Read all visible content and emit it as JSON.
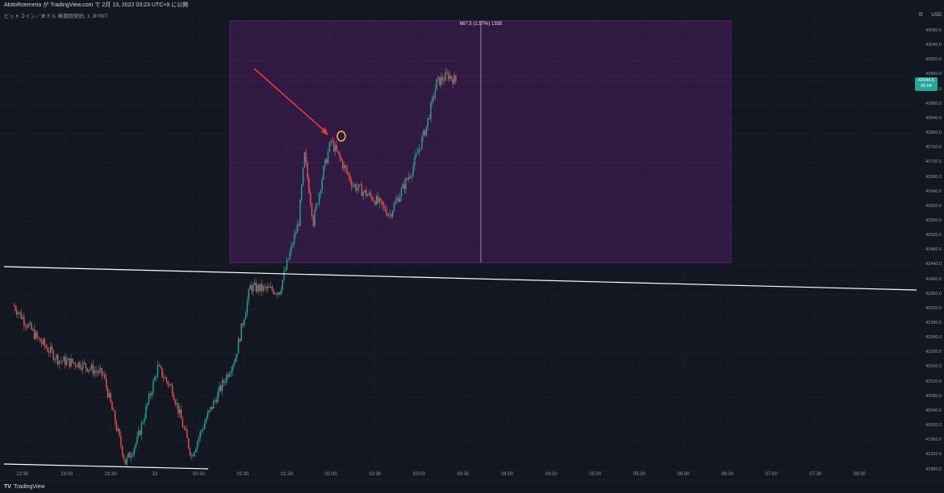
{
  "header": {
    "top_text": "AlotoRoemeria が TradingView.com で 2月 13, 2022 03:23 UTC+9 に公開",
    "symbol_text": "ビットコイン／米ドル 無期限契約, 1, BYBIT"
  },
  "measure": {
    "label": "667.5 (1.57%) 1335"
  },
  "price_axis": {
    "currency": "USD",
    "ticks": [
      "43080.0",
      "43040.0",
      "43000.0",
      "42960.0",
      "42920.0",
      "42880.0",
      "42840.0",
      "42800.0",
      "42760.0",
      "42720.0",
      "42680.0",
      "42640.0",
      "42600.0",
      "42560.0",
      "42520.0",
      "42480.0",
      "42440.0",
      "42400.0",
      "42360.0",
      "42320.0",
      "42280.0",
      "42240.0",
      "42200.0",
      "42160.0",
      "42120.0",
      "42080.0",
      "42040.0",
      "42000.0",
      "41960.0",
      "41920.0",
      "41880.0"
    ],
    "last_price": "42944.5",
    "countdown": "00:04"
  },
  "time_axis": {
    "ticks": [
      "22:30",
      "23:00",
      "23:30",
      "13",
      "00:30",
      "01:00",
      "01:30",
      "02:00",
      "02:30",
      "03:00",
      "03:30",
      "04:00",
      "04:30",
      "05:00",
      "05:30",
      "06:00",
      "06:30",
      "07:00",
      "07:30",
      "08:00"
    ]
  },
  "footer": {
    "brand": "TradingView",
    "logo_mark": "TV"
  },
  "colors": {
    "up": "#26a69a",
    "down": "#ef5350",
    "box": "#9c27b0",
    "arrow": "#e53935",
    "circle": "#ffb74d",
    "trendline": "#ffffff"
  },
  "chart_data": {
    "type": "candlestick",
    "title": "",
    "y_range": [
      41870,
      43100
    ],
    "close_path": [
      [
        "22:24",
        42330
      ],
      [
        "22:40",
        42240
      ],
      [
        "22:55",
        42180
      ],
      [
        "23:10",
        42170
      ],
      [
        "23:25",
        42140
      ],
      [
        "23:40",
        41900
      ],
      [
        "23:48",
        41960
      ],
      [
        "00:02",
        42160
      ],
      [
        "00:12",
        42100
      ],
      [
        "00:25",
        41920
      ],
      [
        "00:35",
        42020
      ],
      [
        "00:55",
        42190
      ],
      [
        "01:05",
        42380
      ],
      [
        "01:25",
        42370
      ],
      [
        "01:38",
        42560
      ],
      [
        "01:42",
        42740
      ],
      [
        "01:48",
        42560
      ],
      [
        "01:55",
        42700
      ],
      [
        "02:00",
        42780
      ],
      [
        "02:15",
        42660
      ],
      [
        "02:30",
        42620
      ],
      [
        "02:40",
        42580
      ],
      [
        "02:55",
        42700
      ],
      [
        "03:05",
        42820
      ],
      [
        "03:12",
        42940
      ],
      [
        "03:20",
        42960
      ],
      [
        "03:25",
        42944.5
      ]
    ]
  }
}
